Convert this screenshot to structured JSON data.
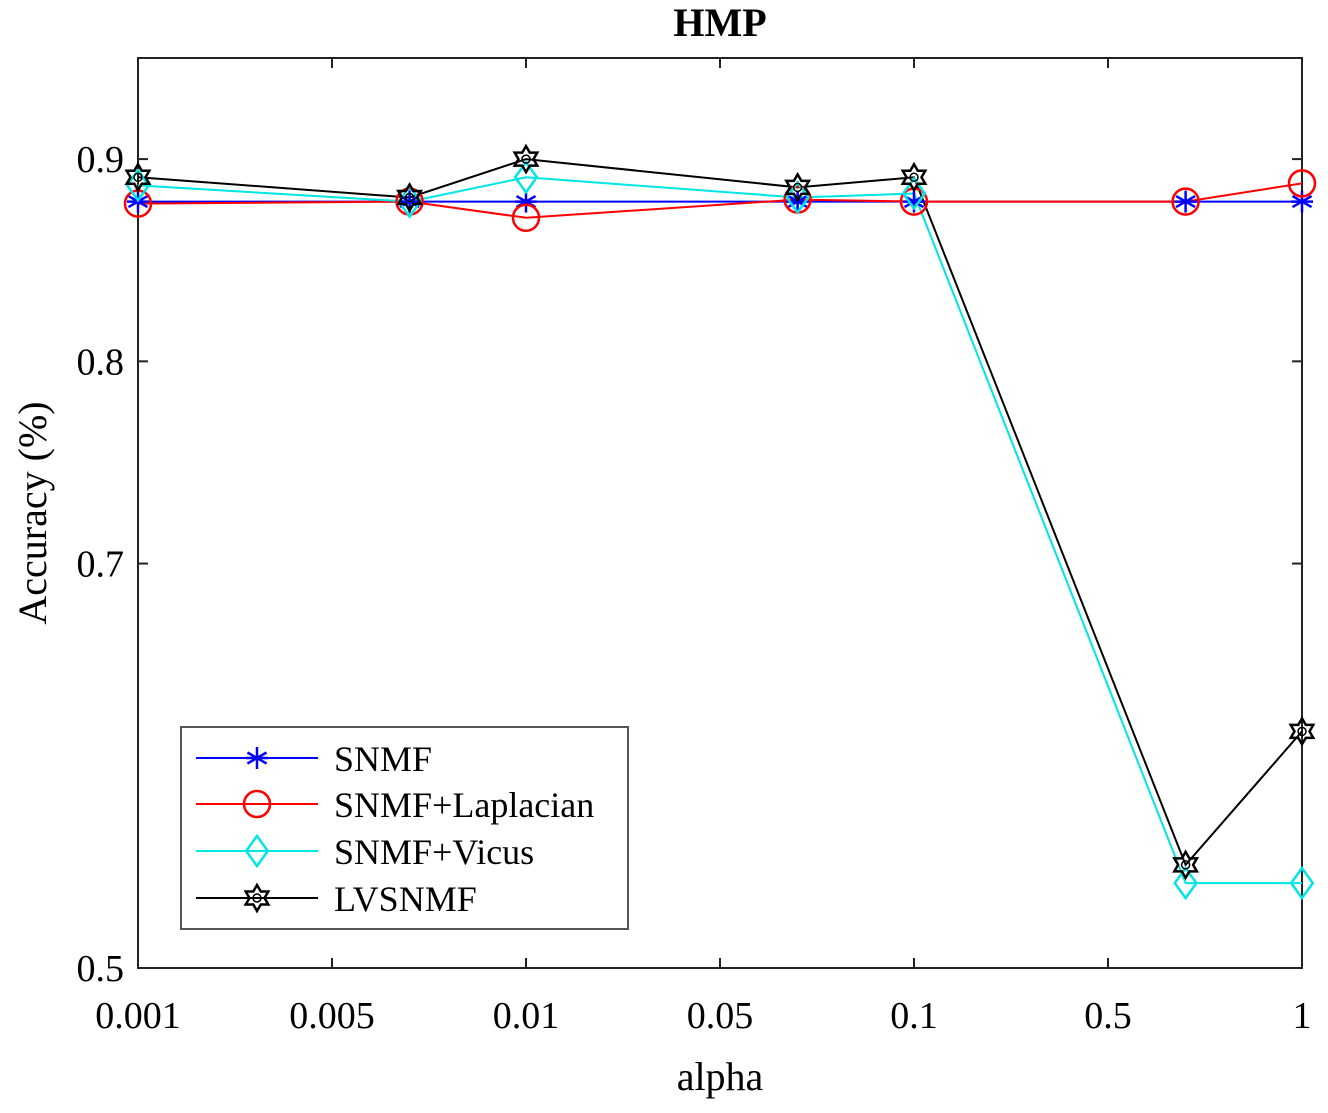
{
  "chart_data": {
    "type": "line",
    "title": "HMP",
    "xlabel": "alpha",
    "ylabel": "Accuracy (%)",
    "x": [
      "0.001",
      "0.005",
      "0.01",
      "0.05",
      "0.1",
      "0.5",
      "1"
    ],
    "point_x": [
      0,
      1.4,
      2,
      3.4,
      4,
      5.4,
      6
    ],
    "yticks": [
      "0.5",
      "0.7",
      "0.8",
      "0.9"
    ],
    "ylim": [
      0.5,
      0.95
    ],
    "grid": false,
    "legend_position": "bottom-left",
    "series": [
      {
        "name": "SNMF",
        "color": "#0000ff",
        "marker": "asterisk",
        "values": [
          0.879,
          0.879,
          0.879,
          0.879,
          0.879,
          0.879,
          0.879
        ]
      },
      {
        "name": "SNMF+Laplacian",
        "color": "#ff0000",
        "marker": "circle",
        "values": [
          0.878,
          0.879,
          0.871,
          0.88,
          0.879,
          0.879,
          0.888
        ]
      },
      {
        "name": "SNMF+Vicus",
        "color": "#00e5e5",
        "marker": "diamond",
        "values": [
          0.887,
          0.879,
          0.891,
          0.881,
          0.883,
          0.542,
          0.542
        ]
      },
      {
        "name": "LVSNMF",
        "color": "#000000",
        "marker": "hexagram",
        "values": [
          0.891,
          0.881,
          0.9,
          0.886,
          0.891,
          0.551,
          0.617
        ]
      }
    ]
  }
}
